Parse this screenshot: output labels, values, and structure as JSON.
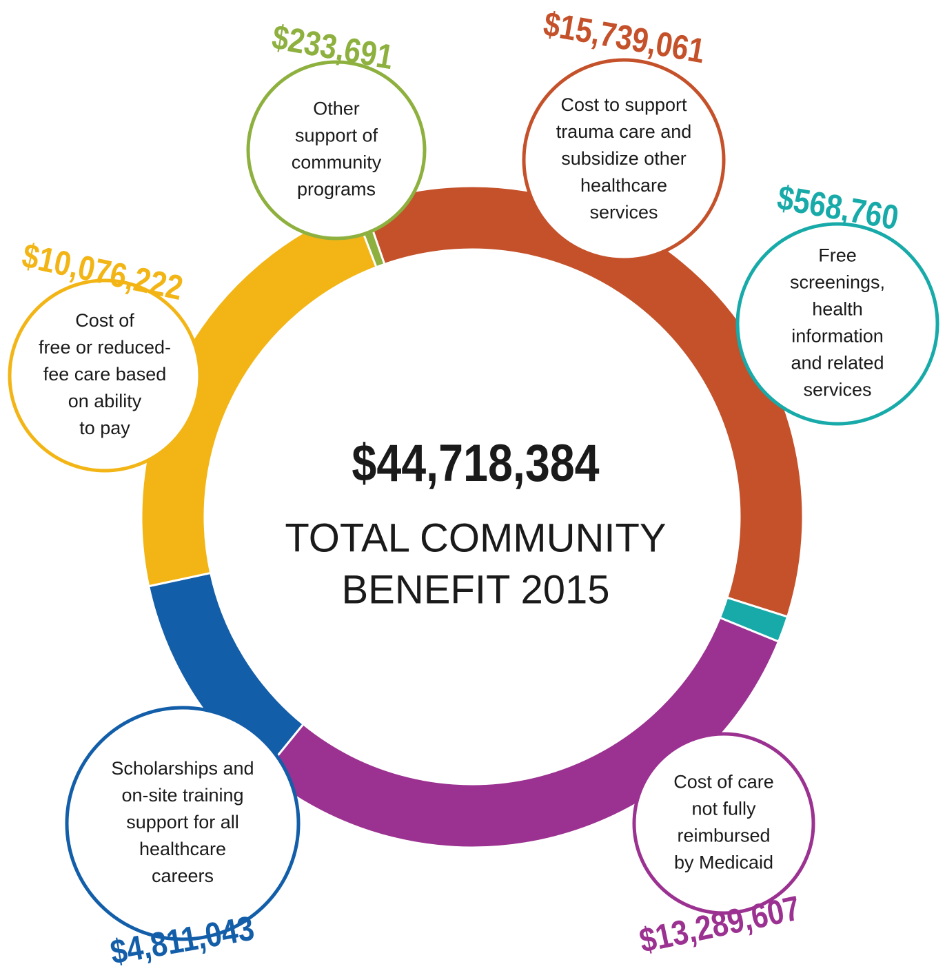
{
  "chart_data": {
    "type": "donut",
    "total": {
      "value": 44718384,
      "label": "$44,718,384"
    },
    "title_lines": [
      "TOTAL COMMUNITY",
      "BENEFIT 2015"
    ],
    "values": [
      233691,
      15739061,
      568760,
      13289607,
      4811043,
      10076222
    ],
    "value_labels": [
      "$233,691",
      "$15,739,061",
      "$568,760",
      "$13,289,607",
      "$4,811,043",
      "$10,076,222"
    ],
    "colors": [
      "#8db03e",
      "#c4512a",
      "#17aaa9",
      "#9b3190",
      "#135ea9",
      "#f2b515"
    ],
    "descriptions": [
      [
        "Other",
        "support of",
        "community",
        "programs"
      ],
      [
        "Cost to support",
        "trauma care and",
        "subsidize other",
        "healthcare",
        "services"
      ],
      [
        "Free",
        "screenings,",
        "health",
        "information",
        "and related",
        "services"
      ],
      [
        "Cost of care",
        "not fully",
        "reimbursed",
        "by Medicaid"
      ],
      [
        "Scholarships and",
        "on-site training",
        "support for all",
        "healthcare",
        "careers"
      ],
      [
        "Cost of",
        "free or reduced-",
        "fee care based",
        "on ability",
        "to pay"
      ]
    ]
  }
}
